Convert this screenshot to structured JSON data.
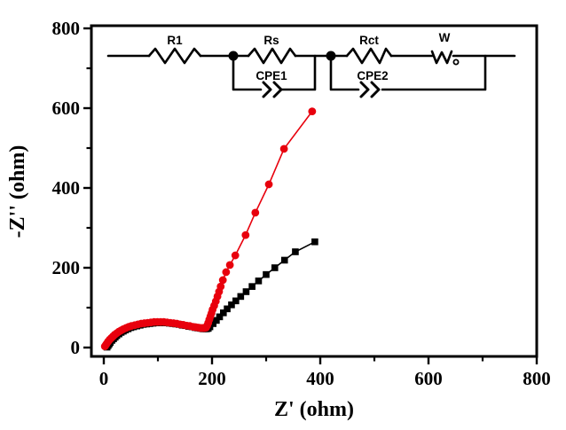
{
  "chart_data": {
    "type": "scatter",
    "title": "",
    "xlabel": "Z' (ohm)",
    "ylabel": "-Z'' (ohm)",
    "xlim": [
      0,
      800
    ],
    "ylim": [
      0,
      800
    ],
    "x_ticks": [
      0,
      200,
      400,
      600,
      800
    ],
    "y_ticks": [
      0,
      200,
      400,
      600,
      800
    ],
    "x_minor_ticks": [
      100,
      300,
      500,
      700
    ],
    "y_minor_ticks": [
      100,
      300,
      500,
      700
    ],
    "grid": false,
    "legend": "none",
    "series": [
      {
        "name": "black-squares",
        "marker": "square",
        "color": "#000000",
        "points": [
          [
            6,
            1
          ],
          [
            8,
            5
          ],
          [
            10,
            9
          ],
          [
            12,
            13
          ],
          [
            15,
            18
          ],
          [
            18,
            22
          ],
          [
            21,
            26
          ],
          [
            24,
            30
          ],
          [
            28,
            34
          ],
          [
            32,
            38
          ],
          [
            36,
            41
          ],
          [
            40,
            44
          ],
          [
            45,
            47
          ],
          [
            50,
            50
          ],
          [
            55,
            52
          ],
          [
            61,
            54
          ],
          [
            67,
            56
          ],
          [
            73,
            58
          ],
          [
            79,
            59
          ],
          [
            85,
            60
          ],
          [
            91,
            61
          ],
          [
            97,
            62
          ],
          [
            103,
            62
          ],
          [
            109,
            62
          ],
          [
            115,
            62
          ],
          [
            121,
            61
          ],
          [
            127,
            60
          ],
          [
            133,
            59
          ],
          [
            139,
            58
          ],
          [
            145,
            56
          ],
          [
            151,
            55
          ],
          [
            157,
            53
          ],
          [
            163,
            52
          ],
          [
            169,
            50
          ],
          [
            174,
            49
          ],
          [
            179,
            48
          ],
          [
            183,
            47
          ],
          [
            187,
            47
          ],
          [
            190,
            47
          ],
          [
            193,
            48
          ],
          [
            196,
            52
          ],
          [
            202,
            60
          ],
          [
            208,
            68
          ],
          [
            214,
            77
          ],
          [
            221,
            87
          ],
          [
            228,
            97
          ],
          [
            236,
            107
          ],
          [
            244,
            117
          ],
          [
            253,
            128
          ],
          [
            263,
            140
          ],
          [
            274,
            153
          ],
          [
            286,
            167
          ],
          [
            300,
            183
          ],
          [
            316,
            200
          ],
          [
            334,
            219
          ],
          [
            354,
            240
          ],
          [
            390,
            265
          ]
        ]
      },
      {
        "name": "red-circles",
        "marker": "circle",
        "color": "#e8000d",
        "points": [
          [
            2,
            3
          ],
          [
            4,
            7
          ],
          [
            6,
            11
          ],
          [
            8,
            15
          ],
          [
            11,
            20
          ],
          [
            14,
            24
          ],
          [
            17,
            28
          ],
          [
            20,
            32
          ],
          [
            24,
            36
          ],
          [
            28,
            40
          ],
          [
            32,
            43
          ],
          [
            36,
            46
          ],
          [
            41,
            49
          ],
          [
            46,
            52
          ],
          [
            51,
            54
          ],
          [
            57,
            56
          ],
          [
            63,
            58
          ],
          [
            69,
            60
          ],
          [
            75,
            61
          ],
          [
            81,
            62
          ],
          [
            87,
            63
          ],
          [
            93,
            64
          ],
          [
            99,
            64
          ],
          [
            105,
            64
          ],
          [
            111,
            64
          ],
          [
            117,
            63
          ],
          [
            123,
            62
          ],
          [
            129,
            61
          ],
          [
            135,
            60
          ],
          [
            141,
            58
          ],
          [
            147,
            57
          ],
          [
            153,
            55
          ],
          [
            159,
            54
          ],
          [
            165,
            52
          ],
          [
            170,
            51
          ],
          [
            175,
            50
          ],
          [
            179,
            49
          ],
          [
            183,
            49
          ],
          [
            186,
            49
          ],
          [
            189,
            50
          ],
          [
            191,
            55
          ],
          [
            193,
            62
          ],
          [
            195,
            70
          ],
          [
            197,
            78
          ],
          [
            199,
            86
          ],
          [
            201,
            95
          ],
          [
            204,
            105
          ],
          [
            207,
            116
          ],
          [
            210,
            128
          ],
          [
            213,
            140
          ],
          [
            216,
            153
          ],
          [
            220,
            169
          ],
          [
            226,
            189
          ],
          [
            233,
            207
          ],
          [
            243,
            231
          ],
          [
            262,
            282
          ],
          [
            280,
            338
          ],
          [
            305,
            409
          ],
          [
            333,
            498
          ],
          [
            385,
            592
          ]
        ]
      }
    ]
  },
  "circuit": {
    "labels": {
      "r1": "R1",
      "rs": "Rs",
      "rct": "Rct",
      "w": "W",
      "cpe1": "CPE1",
      "cpe2": "CPE2"
    }
  }
}
